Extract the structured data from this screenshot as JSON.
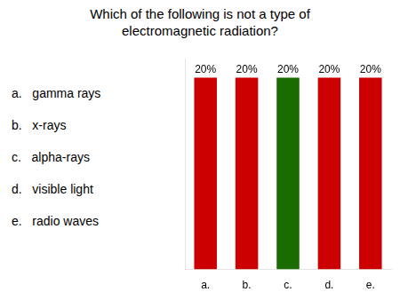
{
  "chart_data": {
    "type": "bar",
    "title": "Which of the following is not a type of\nelectromagnetic radiation?",
    "categories": [
      "a.",
      "b.",
      "c.",
      "d.",
      "e."
    ],
    "values": [
      20,
      20,
      20,
      20,
      20
    ],
    "value_labels": [
      "20%",
      "20%",
      "20%",
      "20%",
      "20%"
    ],
    "colors": [
      "#cc0000",
      "#cc0000",
      "#1a6b00",
      "#cc0000",
      "#cc0000"
    ],
    "annotations": [
      "a.   gamma rays",
      "b.   x-rays",
      "c.   alpha-rays",
      "d.   visible light",
      "e.   radio waves"
    ],
    "ylim": [
      0,
      22
    ],
    "grid": false,
    "data_labels": true,
    "tick_labels": "x"
  }
}
